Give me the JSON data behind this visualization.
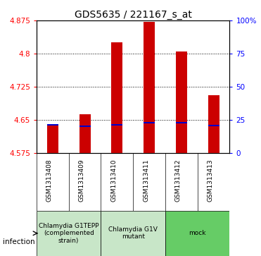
{
  "title": "GDS5635 / 221167_s_at",
  "samples": [
    "GSM1313408",
    "GSM1313409",
    "GSM1313410",
    "GSM1313411",
    "GSM1313412",
    "GSM1313413"
  ],
  "transformed_counts": [
    4.638,
    4.662,
    4.825,
    4.872,
    4.805,
    4.705
  ],
  "percentile_values": [
    4.638,
    4.635,
    4.638,
    4.643,
    4.643,
    4.637
  ],
  "ymin": 4.575,
  "ymax": 4.875,
  "yticks": [
    4.575,
    4.65,
    4.725,
    4.8,
    4.875
  ],
  "ytick_labels": [
    "4.575",
    "4.65",
    "4.725",
    "4.8",
    "4.875"
  ],
  "right_yticks": [
    0,
    25,
    50,
    75,
    100
  ],
  "right_ytick_labels": [
    "0",
    "25",
    "50",
    "75",
    "100%"
  ],
  "groups": [
    {
      "label": "Chlamydia G1TEPP\n(complemented\nstrain)",
      "color": "#c8e6c8",
      "start": 0,
      "end": 2
    },
    {
      "label": "Chlamydia G1V\nmutant",
      "color": "#c8e6c8",
      "start": 2,
      "end": 4
    },
    {
      "label": "mock",
      "color": "#66cc66",
      "start": 4,
      "end": 6
    }
  ],
  "bar_color": "#cc0000",
  "blue_color": "#0000cc",
  "bar_width": 0.35,
  "background_color": "#ffffff",
  "title_fontsize": 10,
  "tick_fontsize": 7.5,
  "sample_fontsize": 6.5,
  "group_fontsize": 6.5,
  "legend_fontsize": 7
}
